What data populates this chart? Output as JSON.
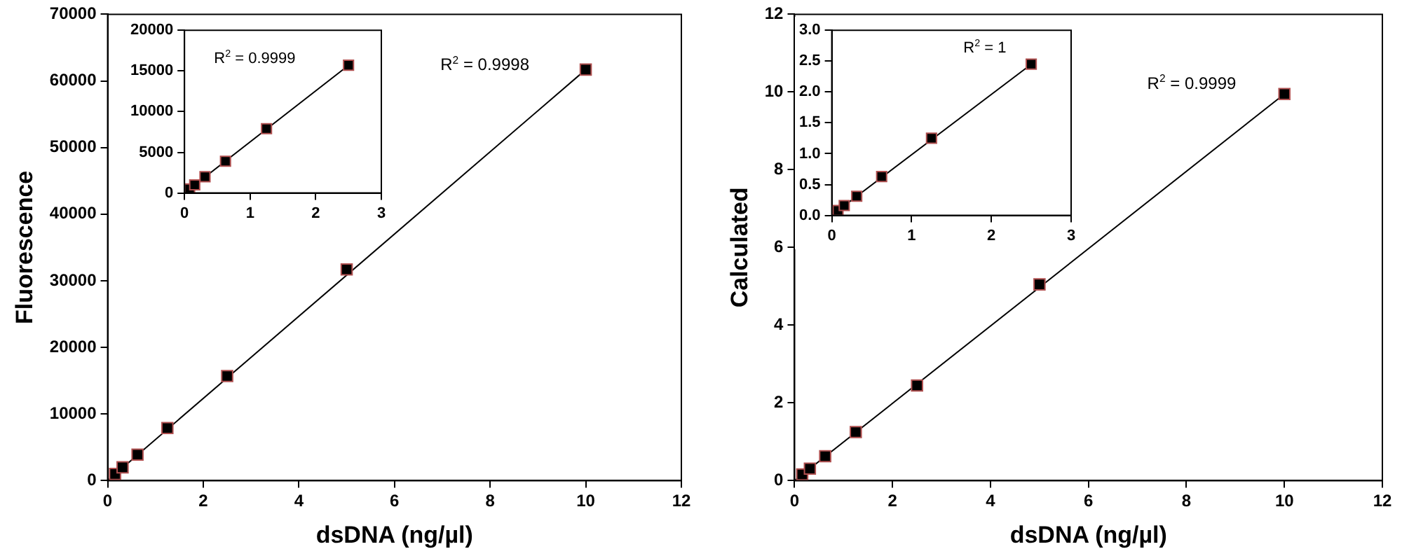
{
  "chart_data": [
    {
      "type": "scatter",
      "xlabel": "dsDNA (ng/µl)",
      "ylabel": "Fluorescence",
      "xlim": [
        0,
        12
      ],
      "xticks": [
        0,
        2,
        4,
        6,
        8,
        10,
        12
      ],
      "ylim": [
        0,
        70000
      ],
      "yticks": [
        0,
        10000,
        20000,
        30000,
        40000,
        50000,
        60000,
        70000
      ],
      "marker": "square",
      "legend": false,
      "grid": false,
      "annotations": [
        "R$^{2}$ = 0.9998"
      ],
      "series": [
        {
          "type": "line",
          "marker": "none",
          "color": "#000000",
          "x": [
            0,
            10
          ],
          "values": [
            0,
            61700
          ]
        },
        {
          "color": "#000000",
          "x": [
            0.156,
            0.3125,
            0.625,
            1.25,
            2.5,
            5,
            10
          ],
          "values": [
            1000,
            2000,
            3900,
            7900,
            15700,
            31700,
            61700
          ]
        }
      ]
    },
    {
      "type": "scatter",
      "xlim": [
        0,
        3
      ],
      "xticks": [
        0,
        1,
        2,
        3
      ],
      "ylim": [
        0,
        20000
      ],
      "yticks": [
        0,
        5000,
        10000,
        15000,
        20000
      ],
      "marker": "square",
      "legend": false,
      "grid": false,
      "annotations": [
        "R$^{2}$ = 0.9999"
      ],
      "series": [
        {
          "type": "line",
          "marker": "none",
          "color": "#000000",
          "x": [
            0,
            2.5
          ],
          "values": [
            0,
            15700
          ]
        },
        {
          "color": "#000000",
          "x": [
            0.078,
            0.156,
            0.3125,
            0.625,
            1.25,
            2.5
          ],
          "values": [
            500,
            1000,
            2000,
            3900,
            7900,
            15700
          ]
        }
      ]
    },
    {
      "type": "scatter",
      "xlabel": "dsDNA (ng/µl)",
      "ylabel": "Calculated",
      "xlim": [
        0,
        12
      ],
      "xticks": [
        0,
        2,
        4,
        6,
        8,
        10,
        12
      ],
      "ylim": [
        0,
        12
      ],
      "yticks": [
        0,
        2,
        4,
        6,
        8,
        10,
        12
      ],
      "marker": "square",
      "legend": false,
      "grid": false,
      "annotations": [
        "R$^{2}$ = 0.9999"
      ],
      "series": [
        {
          "type": "line",
          "marker": "none",
          "color": "#000000",
          "x": [
            0,
            10
          ],
          "values": [
            0,
            9.95
          ]
        },
        {
          "color": "#000000",
          "x": [
            0.156,
            0.3125,
            0.625,
            1.25,
            2.5,
            5,
            10
          ],
          "values": [
            0.16,
            0.31,
            0.63,
            1.25,
            2.45,
            5.05,
            9.95
          ]
        }
      ]
    },
    {
      "type": "scatter",
      "xlim": [
        0,
        3
      ],
      "xticks": [
        0,
        1,
        2,
        3
      ],
      "ylim": [
        0,
        3
      ],
      "yticks": [
        {
          "value": 0,
          "label": "0.0"
        },
        {
          "value": 0.5,
          "label": "0.5"
        },
        {
          "value": 1,
          "label": "1.0"
        },
        {
          "value": 1.5,
          "label": "1.5"
        },
        {
          "value": 2,
          "label": "2.0"
        },
        {
          "value": 2.5,
          "label": "2.5"
        },
        {
          "value": 3,
          "label": "3.0"
        }
      ],
      "marker": "square",
      "legend": false,
      "grid": false,
      "annotations": [
        "R$^{2}$ = 1"
      ],
      "series": [
        {
          "type": "line",
          "marker": "none",
          "color": "#000000",
          "x": [
            0.078,
            2.5
          ],
          "values": [
            0.08,
            2.45
          ]
        },
        {
          "color": "#000000",
          "x": [
            0.078,
            0.156,
            0.3125,
            0.625,
            1.25,
            2.5
          ],
          "values": [
            0.08,
            0.16,
            0.31,
            0.63,
            1.25,
            2.45
          ]
        }
      ]
    }
  ]
}
